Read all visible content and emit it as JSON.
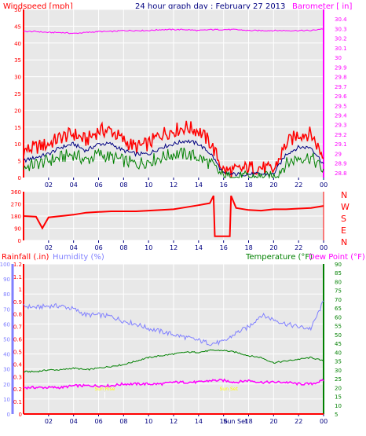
{
  "chart_data": [
    {
      "type": "line",
      "title": "24 hour graph day : February 27 2013",
      "left_axis_label": "Windspeed [mph]",
      "right_axis_label": "Barometer [ in]",
      "x_ticks": [
        "02",
        "04",
        "06",
        "08",
        "10",
        "12",
        "14",
        "16",
        "18",
        "20",
        "22",
        "00"
      ],
      "left_ticks": [
        "0",
        "5",
        "10",
        "15",
        "20",
        "25",
        "30",
        "35",
        "40",
        "45",
        "50"
      ],
      "right_ticks": [
        "28.8",
        "28.9",
        "29",
        "29.1",
        "29.2",
        "29.3",
        "29.4",
        "29.5",
        "29.6",
        "29.7",
        "29.8",
        "29.9",
        "30",
        "30.1",
        "30.2",
        "30.3",
        "30.4"
      ],
      "ylim_left": [
        0,
        50
      ],
      "ylim_right": [
        28.75,
        30.5
      ],
      "x_hours": [
        0,
        1,
        2,
        3,
        4,
        5,
        6,
        7,
        8,
        9,
        10,
        11,
        12,
        13,
        14,
        15,
        16,
        17,
        18,
        19,
        20,
        21,
        22,
        23,
        24
      ],
      "series": [
        {
          "name": "Wind Gust",
          "axis": "left",
          "color": "#ff0000",
          "values": [
            8,
            9,
            10,
            12,
            13,
            11,
            14,
            14,
            11,
            9,
            10,
            13,
            14,
            15,
            14,
            10,
            2,
            2,
            3,
            3,
            2,
            10,
            13,
            13,
            6
          ]
        },
        {
          "name": "Wind Speed Avg",
          "axis": "left",
          "color": "#000080",
          "values": [
            5,
            6,
            7,
            9,
            10,
            8,
            10,
            10,
            8,
            7,
            7,
            9,
            10,
            11,
            10,
            7,
            1,
            1,
            1,
            1,
            1,
            7,
            9,
            9,
            4
          ]
        },
        {
          "name": "Wind Speed",
          "axis": "left",
          "color": "#008000",
          "values": [
            3,
            4,
            5,
            6,
            7,
            5,
            7,
            6,
            5,
            4,
            5,
            6,
            7,
            7,
            6,
            4,
            0,
            0,
            0,
            0,
            0,
            4,
            6,
            6,
            2
          ]
        },
        {
          "name": "Barometer",
          "axis": "right",
          "color": "#ff00ff",
          "values": [
            30.27,
            30.27,
            30.26,
            30.26,
            30.25,
            30.26,
            30.27,
            30.27,
            30.28,
            30.28,
            30.28,
            30.29,
            30.29,
            30.29,
            30.28,
            30.29,
            30.29,
            30.29,
            30.28,
            30.28,
            30.28,
            30.28,
            30.28,
            30.28,
            30.3
          ]
        }
      ]
    },
    {
      "type": "line",
      "direction_labels": [
        "N",
        "W",
        "S",
        "E",
        "N"
      ],
      "x_ticks": [
        "02",
        "04",
        "06",
        "08",
        "10",
        "12",
        "14",
        "16",
        "18",
        "20",
        "22",
        "00"
      ],
      "left_ticks": [
        "0",
        "90",
        "180",
        "270",
        "360"
      ],
      "ylim": [
        0,
        360
      ],
      "x_hours": [
        0,
        1,
        1.5,
        2,
        3,
        4,
        5,
        6,
        7,
        8,
        9,
        10,
        11,
        12,
        13,
        14,
        14.9,
        15.2,
        15.3,
        16.5,
        16.6,
        17,
        18,
        19,
        20,
        21,
        22,
        23,
        24
      ],
      "series": [
        {
          "name": "Wind Direction",
          "color": "#ff0000",
          "values": [
            180,
            175,
            90,
            170,
            180,
            190,
            205,
            210,
            215,
            215,
            215,
            220,
            225,
            230,
            245,
            260,
            275,
            330,
            30,
            30,
            330,
            240,
            225,
            220,
            230,
            230,
            235,
            240,
            255
          ]
        }
      ]
    },
    {
      "type": "line",
      "left_axis_label": "Rainfall (.in)",
      "left_axis_label2": "Humidity (%)",
      "right_axis_label": "Temperature (°F)",
      "right_axis_label2": "Dew Point (°F)",
      "x_ticks": [
        "02",
        "04",
        "06",
        "08",
        "10",
        "12",
        "14",
        "16",
        "18",
        "20",
        "22",
        "00"
      ],
      "x_annotation": "Sun Set",
      "sunrise_labels": [
        "Sun Rise",
        "Sun Set"
      ],
      "rain_ticks": [
        "0",
        "0.1",
        "0.2",
        "0.3",
        "0.4",
        "0.5",
        "0.6",
        "0.7",
        "0.8",
        "0.9",
        "1",
        "1.1",
        "1.2"
      ],
      "humidity_ticks": [
        "0",
        "10",
        "20",
        "30",
        "40",
        "50",
        "60",
        "70",
        "80",
        "90",
        "100"
      ],
      "temp_ticks": [
        "5",
        "10",
        "15",
        "20",
        "25",
        "30",
        "35",
        "40",
        "45",
        "50",
        "55",
        "60",
        "65",
        "70",
        "75",
        "80",
        "85",
        "90"
      ],
      "ylim_left": [
        0,
        100
      ],
      "ylim_right": [
        5,
        90
      ],
      "x_hours": [
        0,
        1,
        2,
        3,
        4,
        5,
        6,
        7,
        8,
        9,
        10,
        11,
        12,
        13,
        14,
        15,
        16,
        17,
        18,
        19,
        20,
        21,
        22,
        23,
        24
      ],
      "series": [
        {
          "name": "Humidity",
          "axis": "left",
          "color": "#8080ff",
          "values": [
            72,
            71,
            72,
            72,
            70,
            66,
            66,
            65,
            62,
            60,
            57,
            55,
            53,
            51,
            49,
            47,
            48,
            54,
            58,
            66,
            63,
            60,
            58,
            57,
            75
          ]
        },
        {
          "name": "Temperature",
          "axis": "right",
          "color": "#008000",
          "values": [
            29,
            29,
            30,
            30,
            31,
            30,
            31,
            32,
            33,
            35,
            37,
            38,
            39,
            40,
            40,
            41,
            41,
            40,
            38,
            37,
            34,
            35,
            36,
            37,
            35
          ]
        },
        {
          "name": "Dew Point",
          "axis": "right",
          "color": "#ff00ff",
          "values": [
            20,
            20,
            20,
            20,
            21,
            21,
            21,
            21,
            22,
            22,
            22,
            22,
            23,
            23,
            23,
            24,
            24,
            23,
            24,
            23,
            23,
            23,
            22,
            22,
            24
          ]
        },
        {
          "name": "Rainfall",
          "axis": "rain",
          "color": "#ff0000",
          "values": [
            0,
            0,
            0,
            0,
            0,
            0,
            0,
            0,
            0,
            0,
            0,
            0,
            0,
            0,
            0,
            0,
            0,
            0,
            0,
            0,
            0,
            0,
            0,
            0,
            0
          ]
        }
      ]
    }
  ]
}
